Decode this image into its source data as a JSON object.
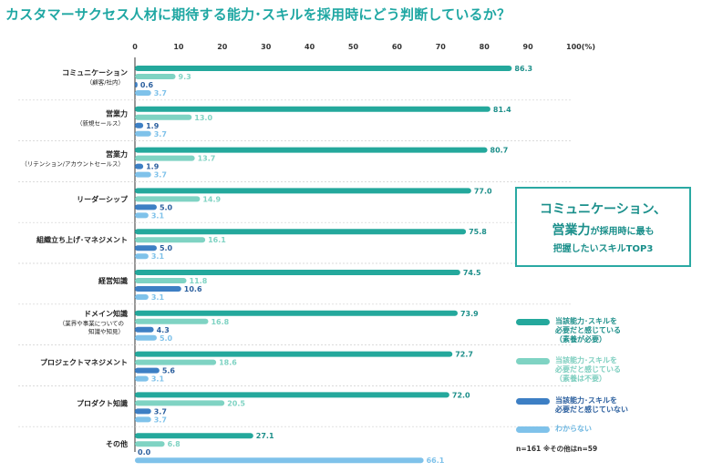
{
  "title": "カスタマーサクセス人材に期待する能力･スキルを採用時にどう判断しているか？",
  "chart_data": {
    "type": "bar",
    "orientation": "horizontal",
    "x_ticks": [
      "0",
      "10",
      "20",
      "30",
      "40",
      "50",
      "60",
      "70",
      "80",
      "90",
      "100(%)"
    ],
    "xlim": [
      0,
      100
    ],
    "categories": [
      {
        "label": "コミュニケーション",
        "sub": [
          "（顧客/社内）"
        ]
      },
      {
        "label": "営業力",
        "sub": [
          "（新規セールス）"
        ]
      },
      {
        "label": "営業力",
        "sub": [
          "（リテンション/アカウントセールス）"
        ]
      },
      {
        "label": "リーダーシップ",
        "sub": []
      },
      {
        "label": "組織立ち上げ･マネジメント",
        "sub": []
      },
      {
        "label": "経営知識",
        "sub": []
      },
      {
        "label": "ドメイン知識",
        "sub": [
          "（業界や事業についての",
          "知識や知見）"
        ]
      },
      {
        "label": "プロジェクトマネジメント",
        "sub": []
      },
      {
        "label": "プロダクト知識",
        "sub": []
      },
      {
        "label": "その他",
        "sub": []
      }
    ],
    "series": [
      {
        "name": "当該能力･スキルを必要だと感じている（素養が必要）",
        "color": "#24a89c",
        "values": [
          86.3,
          81.4,
          80.7,
          77.0,
          75.8,
          74.5,
          73.9,
          72.7,
          72.0,
          27.1
        ],
        "labels": [
          "86.3",
          "81.4",
          "80.7",
          "77.0",
          "75.8",
          "74.5",
          "73.9",
          "72.7",
          "72.0",
          "27.1"
        ]
      },
      {
        "name": "当該能力･スキルを必要だと感じている（素養は不要）",
        "color": "#7fd3c3",
        "values": [
          9.3,
          13.0,
          13.7,
          14.9,
          16.1,
          11.8,
          16.8,
          18.6,
          20.5,
          6.8
        ],
        "labels": [
          "9.3",
          "13.0",
          "13.7",
          "14.9",
          "16.1",
          "11.8",
          "16.8",
          "18.6",
          "20.5",
          "6.8"
        ]
      },
      {
        "name": "当該能力･スキルを必要だと感じていない",
        "color": "#3d7fc4",
        "values": [
          0.6,
          1.9,
          1.9,
          5.0,
          5.0,
          10.6,
          4.3,
          5.6,
          3.7,
          0.0
        ],
        "labels": [
          "0.6",
          "1.9",
          "1.9",
          "5.0",
          "5.0",
          "10.6",
          "4.3",
          "5.6",
          "3.7",
          "0.0"
        ]
      },
      {
        "name": "わからない",
        "color": "#7fc2ea",
        "values": [
          3.7,
          3.7,
          3.7,
          3.1,
          3.1,
          3.1,
          5.0,
          3.1,
          3.7,
          66.1
        ],
        "labels": [
          "3.7",
          "3.7",
          "3.7",
          "3.1",
          "3.1",
          "3.1",
          "5.0",
          "3.1",
          "3.7",
          "66.1"
        ]
      }
    ],
    "value_label_colors": [
      "#1d8f8a",
      "#7fd3c3",
      "#2b5f9e",
      "#7fc2ea"
    ]
  },
  "callout": {
    "line1": "コミュニケーション、",
    "line2_big": "営業力",
    "line2_small": "が採用時に最も",
    "line3": "把握したいスキルTOP3"
  },
  "legend": [
    {
      "lines": [
        "当該能力･スキルを",
        "必要だと感じている",
        "（素養が必要）"
      ],
      "color": "#24a89c",
      "text_color": "#1d8f8a"
    },
    {
      "lines": [
        "当該能力･スキルを",
        "必要だと感じている",
        "（素養は不要）"
      ],
      "color": "#7fd3c3",
      "text_color": "#7fcfc0"
    },
    {
      "lines": [
        "当該能力･スキルを",
        "必要だと感じていない"
      ],
      "color": "#3d7fc4",
      "text_color": "#2b5f9e"
    },
    {
      "lines": [
        "わからない"
      ],
      "color": "#7fc2ea",
      "text_color": "#6db6e0"
    }
  ],
  "note": "n=161 ※その他はn=59"
}
